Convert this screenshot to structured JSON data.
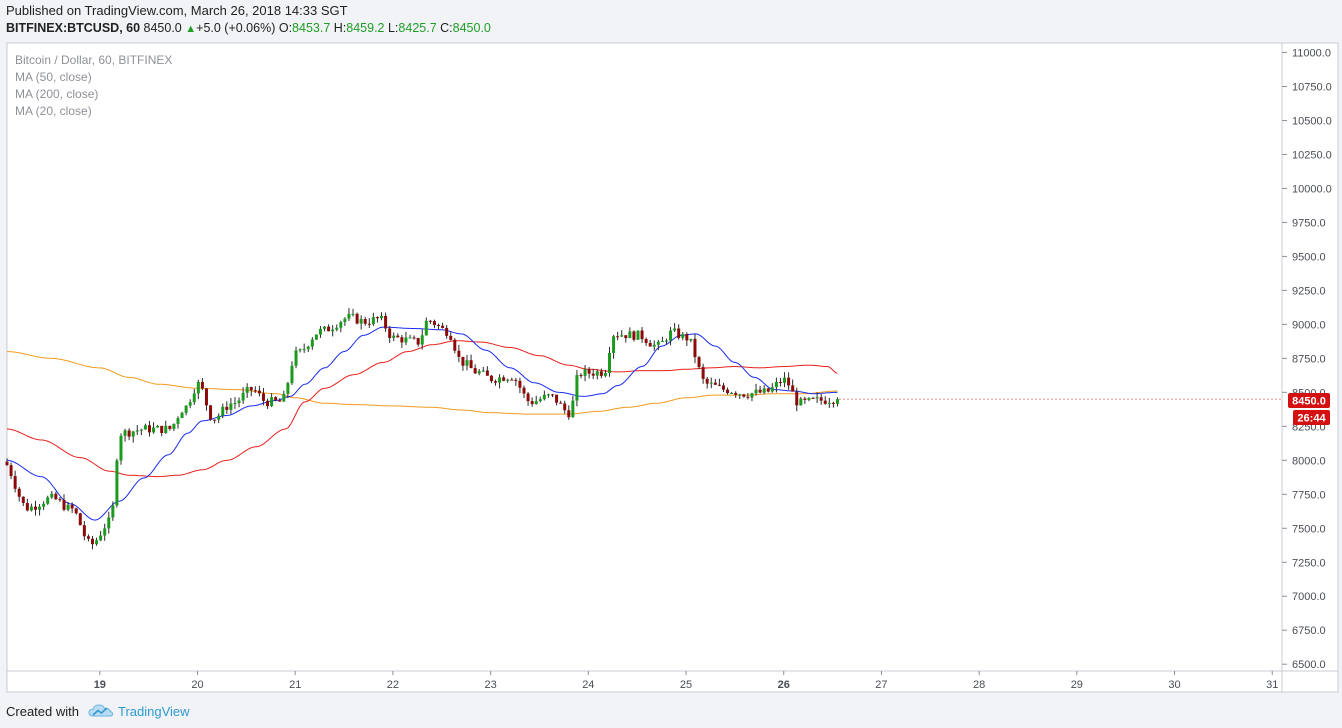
{
  "header": {
    "published": "Published on TradingView.com, March 26, 2018 14:33 SGT",
    "symbol": "BITFINEX:BTCUSD, 60",
    "last": "8450.0",
    "change_arrow": "▲",
    "change": "+5.0 (+0.06%)",
    "o_label": "O:",
    "o": "8453.7",
    "h_label": "H:",
    "h": "8459.2",
    "l_label": "L:",
    "l": "8425.7",
    "c_label": "C:",
    "c": "8450.0"
  },
  "legend": {
    "title": "Bitcoin / Dollar, 60, BITFINEX",
    "ma50": "MA (50, close)",
    "ma200": "MA (200, close)",
    "ma20": "MA (20, close)"
  },
  "price_label": "8450.0",
  "countdown_label": "26:44",
  "footer": {
    "created": "Created with",
    "brand": "TradingView",
    "logo_icon": "tradingview-cloud-logo"
  },
  "colors": {
    "up": "#1c9a1f",
    "down": "#8b0a0a",
    "ma20": "#1a2cf0",
    "ma50": "#e8201b",
    "ma200": "#f19a1d",
    "price_badge": "#d41111"
  },
  "chart_data": {
    "type": "candlestick",
    "title": "Bitcoin / Dollar, 60, BITFINEX",
    "y_ticks": [
      "11000.0",
      "10750.0",
      "10500.0",
      "10250.0",
      "10000.0",
      "9750.0",
      "9500.0",
      "9250.0",
      "9000.0",
      "8750.0",
      "8500.0",
      "8250.0",
      "8000.0",
      "7750.0",
      "7500.0",
      "7250.0",
      "7000.0",
      "6750.0",
      "6500.0"
    ],
    "x_ticks": [
      "19",
      "20",
      "21",
      "22",
      "23",
      "24",
      "25",
      "26",
      "27",
      "28",
      "29",
      "30",
      "31"
    ],
    "x_tick_days": [
      19,
      20,
      21,
      22,
      23,
      24,
      25,
      26,
      27,
      28,
      29,
      30,
      31
    ],
    "bold_ticks": [
      "19",
      "26"
    ],
    "ylim": [
      6450,
      11070
    ],
    "xlim": [
      18.05,
      31.1
    ],
    "last_price": 8450.0,
    "anchors": [
      [
        18.05,
        7990
      ],
      [
        18.3,
        7650
      ],
      [
        18.55,
        7720
      ],
      [
        18.75,
        7640
      ],
      [
        18.95,
        7380
      ],
      [
        19.15,
        7550
      ],
      [
        19.25,
        8200
      ],
      [
        19.5,
        8230
      ],
      [
        19.75,
        8230
      ],
      [
        19.9,
        8380
      ],
      [
        20.05,
        8560
      ],
      [
        20.2,
        8310
      ],
      [
        20.4,
        8420
      ],
      [
        20.6,
        8520
      ],
      [
        20.75,
        8430
      ],
      [
        20.9,
        8430
      ],
      [
        21.05,
        8780
      ],
      [
        21.3,
        8950
      ],
      [
        21.6,
        9050
      ],
      [
        21.75,
        9020
      ],
      [
        21.9,
        9040
      ],
      [
        22.05,
        8900
      ],
      [
        22.3,
        8870
      ],
      [
        22.4,
        9030
      ],
      [
        22.6,
        8950
      ],
      [
        22.75,
        8720
      ],
      [
        22.9,
        8650
      ],
      [
        23.05,
        8600
      ],
      [
        23.25,
        8620
      ],
      [
        23.45,
        8430
      ],
      [
        23.65,
        8470
      ],
      [
        23.85,
        8350
      ],
      [
        23.95,
        8640
      ],
      [
        24.2,
        8650
      ],
      [
        24.3,
        8930
      ],
      [
        24.55,
        8920
      ],
      [
        24.75,
        8840
      ],
      [
        24.9,
        8940
      ],
      [
        25.05,
        8900
      ],
      [
        25.25,
        8560
      ],
      [
        25.45,
        8520
      ],
      [
        25.65,
        8490
      ],
      [
        25.85,
        8500
      ],
      [
        26.05,
        8590
      ],
      [
        26.2,
        8420
      ],
      [
        26.4,
        8440
      ],
      [
        26.55,
        8450
      ]
    ],
    "ma20": [
      [
        18.05,
        8000
      ],
      [
        18.4,
        7880
      ],
      [
        18.7,
        7680
      ],
      [
        18.95,
        7560
      ],
      [
        19.2,
        7700
      ],
      [
        19.45,
        7870
      ],
      [
        19.7,
        8040
      ],
      [
        19.9,
        8200
      ],
      [
        20.05,
        8290
      ],
      [
        20.3,
        8330
      ],
      [
        20.55,
        8400
      ],
      [
        20.8,
        8440
      ],
      [
        20.95,
        8470
      ],
      [
        21.1,
        8560
      ],
      [
        21.3,
        8680
      ],
      [
        21.5,
        8800
      ],
      [
        21.7,
        8920
      ],
      [
        21.9,
        8980
      ],
      [
        22.2,
        8970
      ],
      [
        22.5,
        8960
      ],
      [
        22.7,
        8930
      ],
      [
        22.95,
        8810
      ],
      [
        23.2,
        8680
      ],
      [
        23.45,
        8570
      ],
      [
        23.7,
        8500
      ],
      [
        23.95,
        8470
      ],
      [
        24.15,
        8490
      ],
      [
        24.3,
        8550
      ],
      [
        24.55,
        8690
      ],
      [
        24.75,
        8840
      ],
      [
        24.95,
        8920
      ],
      [
        25.1,
        8930
      ],
      [
        25.3,
        8840
      ],
      [
        25.5,
        8720
      ],
      [
        25.7,
        8610
      ],
      [
        25.9,
        8520
      ],
      [
        26.1,
        8510
      ],
      [
        26.3,
        8490
      ],
      [
        26.55,
        8500
      ]
    ],
    "ma50": [
      [
        18.05,
        8230
      ],
      [
        18.4,
        8150
      ],
      [
        18.8,
        8020
      ],
      [
        19.1,
        7920
      ],
      [
        19.3,
        7890
      ],
      [
        19.6,
        7880
      ],
      [
        19.8,
        7890
      ],
      [
        20.05,
        7930
      ],
      [
        20.3,
        8000
      ],
      [
        20.6,
        8100
      ],
      [
        20.9,
        8230
      ],
      [
        21.1,
        8430
      ],
      [
        21.3,
        8530
      ],
      [
        21.6,
        8630
      ],
      [
        21.9,
        8720
      ],
      [
        22.15,
        8800
      ],
      [
        22.4,
        8850
      ],
      [
        22.65,
        8880
      ],
      [
        22.9,
        8870
      ],
      [
        23.2,
        8830
      ],
      [
        23.5,
        8770
      ],
      [
        23.8,
        8700
      ],
      [
        24.0,
        8670
      ],
      [
        24.3,
        8650
      ],
      [
        24.55,
        8660
      ],
      [
        24.8,
        8660
      ],
      [
        25.0,
        8670
      ],
      [
        25.25,
        8680
      ],
      [
        25.5,
        8690
      ],
      [
        25.75,
        8680
      ],
      [
        26.0,
        8690
      ],
      [
        26.25,
        8700
      ],
      [
        26.45,
        8690
      ],
      [
        26.55,
        8640
      ]
    ],
    "ma200": [
      [
        18.05,
        8800
      ],
      [
        18.5,
        8750
      ],
      [
        19.0,
        8680
      ],
      [
        19.3,
        8610
      ],
      [
        19.6,
        8560
      ],
      [
        20.0,
        8530
      ],
      [
        20.4,
        8520
      ],
      [
        20.8,
        8490
      ],
      [
        21.0,
        8460
      ],
      [
        21.3,
        8420
      ],
      [
        21.6,
        8410
      ],
      [
        22.0,
        8400
      ],
      [
        22.4,
        8390
      ],
      [
        22.7,
        8370
      ],
      [
        23.0,
        8350
      ],
      [
        23.4,
        8340
      ],
      [
        23.8,
        8340
      ],
      [
        24.1,
        8360
      ],
      [
        24.4,
        8390
      ],
      [
        24.7,
        8420
      ],
      [
        25.0,
        8460
      ],
      [
        25.3,
        8480
      ],
      [
        25.6,
        8480
      ],
      [
        25.9,
        8490
      ],
      [
        26.2,
        8490
      ],
      [
        26.55,
        8510
      ]
    ]
  }
}
